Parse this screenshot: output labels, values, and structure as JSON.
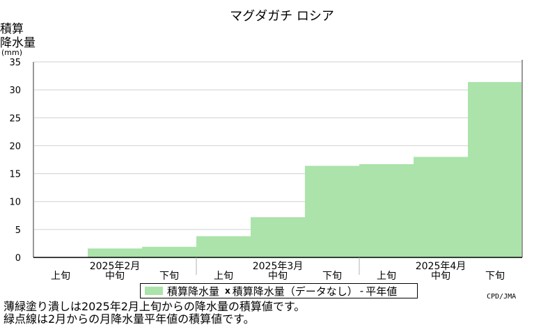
{
  "title": "マグダガチ ロシア",
  "ylabel_lines": [
    "積算",
    "降水量",
    "(mm)"
  ],
  "legend": {
    "fill_label": "積算降水量",
    "missing_marker": "x",
    "missing_label": "積算降水量（データなし）",
    "normal_marker": "-",
    "normal_label": "平年値"
  },
  "credit": "CPD/JMA",
  "notes": [
    "薄緑塗り潰しは2025年2月上旬からの降水量の積算値です。",
    "緑点線は2月からの月降水量平年値の積算値です。"
  ],
  "colors": {
    "fill": "#abe3ab",
    "grid": "#d0d0d0",
    "axis": "#999999"
  },
  "chart_data": {
    "type": "area",
    "ylim": [
      0,
      35
    ],
    "yticks": [
      0,
      5,
      10,
      15,
      20,
      25,
      30,
      35
    ],
    "grid": true,
    "months": [
      {
        "label": "2025年2月",
        "dekads": [
          "上旬",
          "中旬",
          "下旬"
        ]
      },
      {
        "label": "2025年3月",
        "dekads": [
          "上旬",
          "中旬",
          "下旬"
        ]
      },
      {
        "label": "2025年4月",
        "dekads": [
          "上旬",
          "中旬",
          "下旬"
        ]
      }
    ],
    "x": [
      "2025年2月中旬",
      "2025年2月下旬",
      "2025年3月上旬",
      "2025年3月中旬",
      "2025年3月下旬",
      "2025年4月上旬",
      "2025年4月中旬",
      "2025年4月下旬"
    ],
    "values": [
      1.6,
      1.9,
      3.8,
      7.2,
      16.4,
      16.7,
      18.0,
      31.4
    ]
  }
}
